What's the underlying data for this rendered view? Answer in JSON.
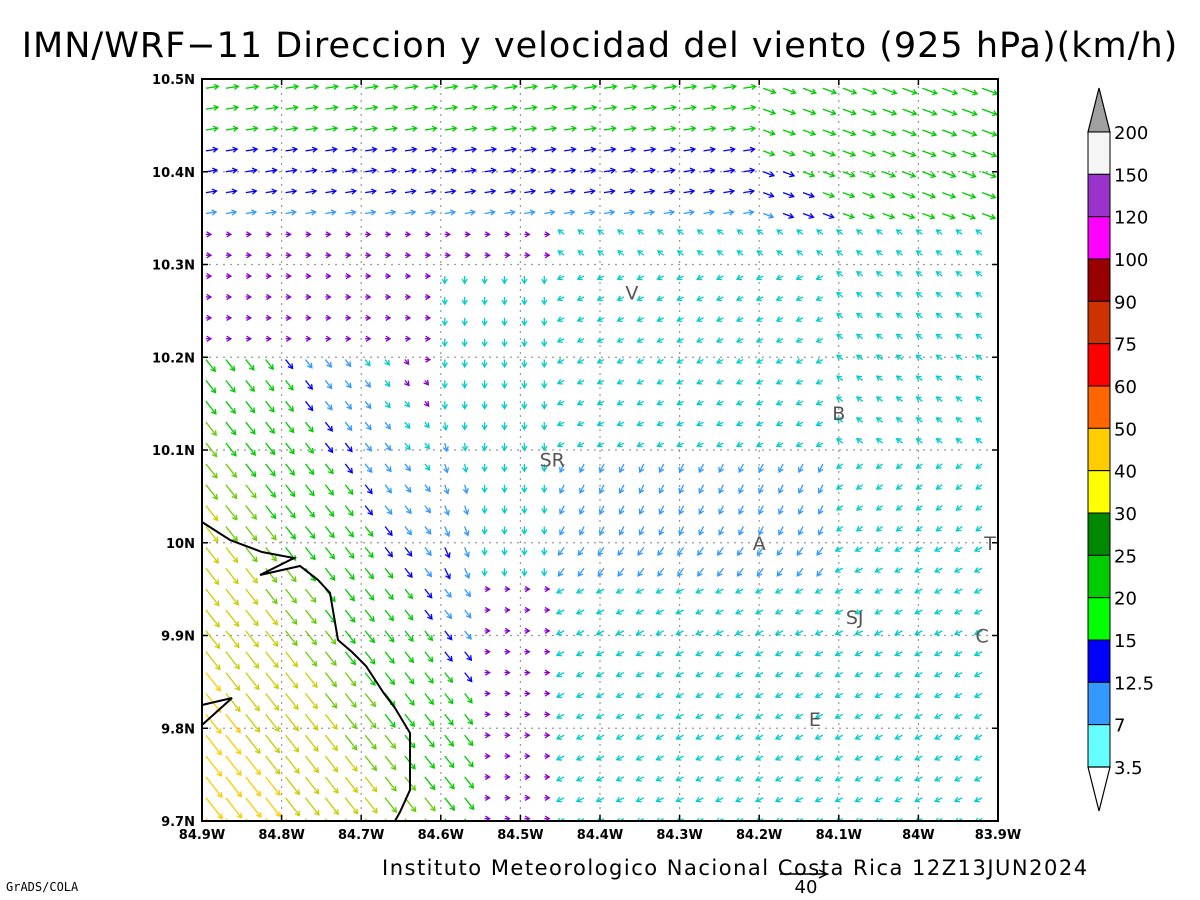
{
  "title": "IMN/WRF−11 Direccion y velocidad del viento (925 hPa)(km/h)",
  "footer": "Instituto Meteorologico Nacional Costa Rica 12Z13JUN2024",
  "software": "GrADS/COLA",
  "map": {
    "lon_labels": [
      "84.9W",
      "84.8W",
      "84.7W",
      "84.6W",
      "84.5W",
      "84.4W",
      "84.3W",
      "84.2W",
      "84.1W",
      "84W",
      "83.9W"
    ],
    "lat_labels": [
      "10.5N",
      "10.4N",
      "10.3N",
      "10.2N",
      "10.1N",
      "10N",
      "9.9N",
      "9.8N",
      "9.7N"
    ],
    "lon_range": [
      -84.9,
      -83.9
    ],
    "lat_range": [
      9.7,
      10.5
    ],
    "cities": [
      {
        "label": "V",
        "lon": -84.36,
        "lat": 10.27
      },
      {
        "label": "SR",
        "lon": -84.46,
        "lat": 10.09
      },
      {
        "label": "B",
        "lon": -84.1,
        "lat": 10.14
      },
      {
        "label": "A",
        "lon": -84.2,
        "lat": 10.0
      },
      {
        "label": "SJ",
        "lon": -84.08,
        "lat": 9.92
      },
      {
        "label": "C",
        "lon": -83.92,
        "lat": 9.9
      },
      {
        "label": "E",
        "lon": -84.13,
        "lat": 9.81
      },
      {
        "label": "T",
        "lon": -83.91,
        "lat": 10.0
      }
    ],
    "reference_vector": {
      "label": "40",
      "value_kmh": 40
    }
  },
  "colorbar": {
    "labels": [
      "200",
      "150",
      "120",
      "100",
      "90",
      "75",
      "60",
      "50",
      "40",
      "30",
      "25",
      "20",
      "15",
      "12.5",
      "7",
      "3.5"
    ],
    "colors": [
      "#a0a0a0",
      "#f5f5f5",
      "#9933cc",
      "#ff00ff",
      "#990000",
      "#cc3300",
      "#ff0000",
      "#ff6600",
      "#ffcc00",
      "#ffff00",
      "#008800",
      "#00cc00",
      "#00ff00",
      "#0000ff",
      "#3399ff",
      "#66ffff",
      "#ffffff"
    ]
  }
}
